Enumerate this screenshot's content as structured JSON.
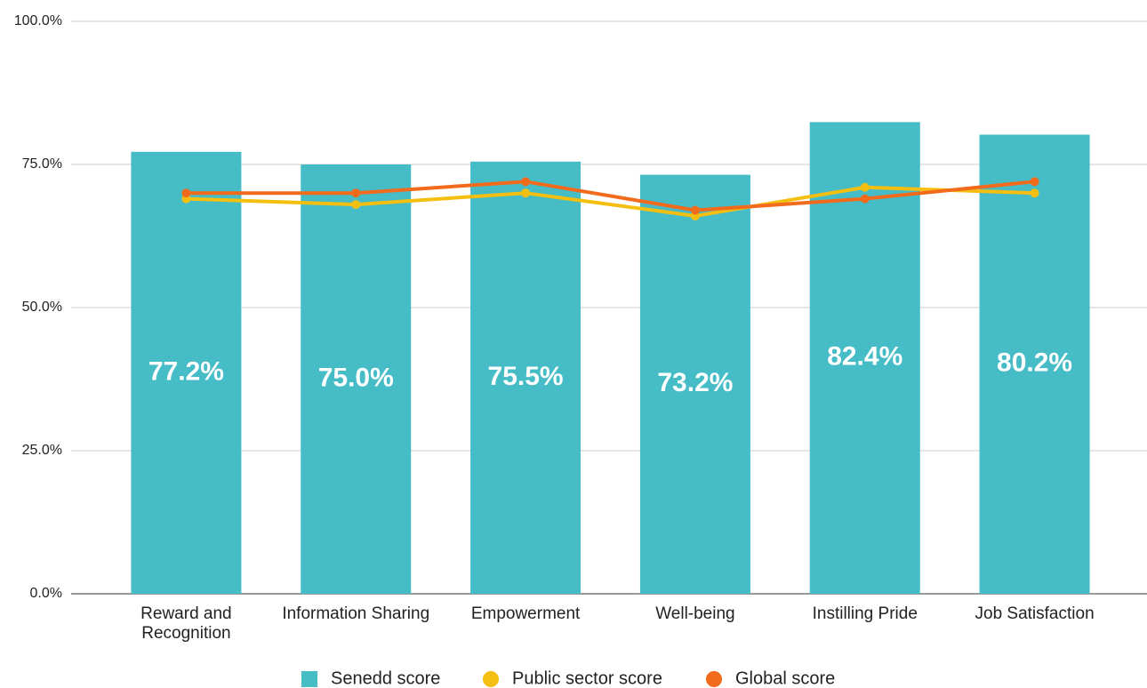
{
  "chart_data": {
    "type": "bar",
    "categories": [
      "Reward and Recognition",
      "Information Sharing",
      "Empowerment",
      "Well-being",
      "Instilling Pride",
      "Job Satisfaction"
    ],
    "series": [
      {
        "name": "Senedd score",
        "type": "bar",
        "color": "#45bcc6",
        "values": [
          77.2,
          75.0,
          75.5,
          73.2,
          82.4,
          80.2
        ],
        "value_labels": [
          "77.2%",
          "75.0%",
          "75.5%",
          "73.2%",
          "82.4%",
          "80.2%"
        ]
      },
      {
        "name": "Public sector score",
        "type": "line",
        "color": "#f5bf12",
        "values": [
          69,
          68,
          70,
          66,
          71,
          70
        ]
      },
      {
        "name": "Global score",
        "type": "line",
        "color": "#f26b1d",
        "values": [
          70,
          70,
          72,
          67,
          69,
          72
        ]
      }
    ],
    "ylim": [
      0,
      100
    ],
    "yticks": [
      {
        "value": 0,
        "label": "0.0%"
      },
      {
        "value": 25,
        "label": "25.0%"
      },
      {
        "value": 50,
        "label": "50.0%"
      },
      {
        "value": 75,
        "label": "75.0%"
      },
      {
        "value": 100,
        "label": "100.0%"
      }
    ],
    "grid": true,
    "legend": "bottom"
  }
}
